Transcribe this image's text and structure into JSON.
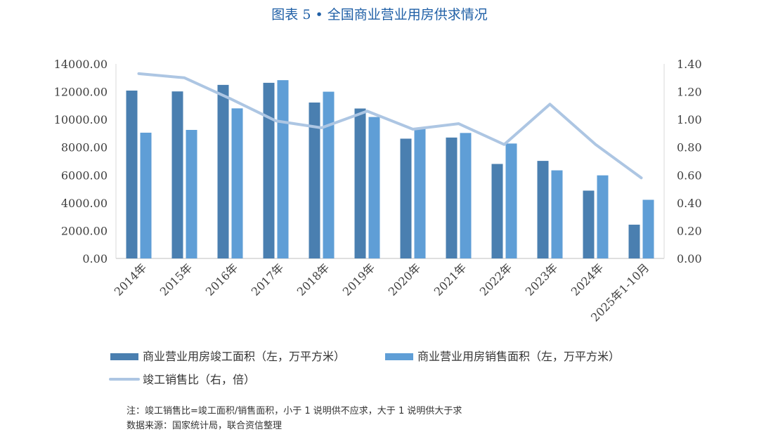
{
  "title": "图表 5 • 全国商业营业用房供求情况",
  "chart_data": {
    "type": "bar",
    "title": "图表 5 • 全国商业营业用房供求情况",
    "categories": [
      "2014年",
      "2015年",
      "2016年",
      "2017年",
      "2018年",
      "2019年",
      "2020年",
      "2021年",
      "2022年",
      "2023年",
      "2024年",
      "2025年1-10月"
    ],
    "series": [
      {
        "name": "商业营业用房竣工面积（左，万平方米）",
        "type": "bar",
        "axis": "left",
        "color": "#4a7fb0",
        "values": [
          12080,
          12020,
          12490,
          12640,
          11220,
          10790,
          8620,
          8700,
          6800,
          7020,
          4880,
          2430
        ]
      },
      {
        "name": "商业营业用房销售面积（左，万平方米）",
        "type": "bar",
        "axis": "left",
        "color": "#5f9ed6",
        "values": [
          9050,
          9250,
          10800,
          12830,
          12000,
          10180,
          9370,
          9030,
          8270,
          6340,
          5980,
          4220
        ]
      },
      {
        "name": "竣工销售比（右，倍）",
        "type": "line",
        "axis": "right",
        "color": "#adc6e3",
        "values": [
          1.33,
          1.3,
          1.15,
          0.99,
          0.94,
          1.06,
          0.93,
          0.97,
          0.82,
          1.11,
          0.82,
          0.58
        ]
      }
    ],
    "y_left": {
      "min": 0,
      "max": 14000,
      "ticks": [
        "0.00",
        "2000.00",
        "4000.00",
        "6000.00",
        "8000.00",
        "10000.00",
        "12000.00",
        "14000.00"
      ]
    },
    "y_right": {
      "min": 0,
      "max": 1.4,
      "ticks": [
        "0.00",
        "0.20",
        "0.40",
        "0.60",
        "0.80",
        "1.00",
        "1.20",
        "1.40"
      ]
    },
    "grid": false,
    "legend_position": "bottom"
  },
  "notes": {
    "note1": "注：竣工销售比=竣工面积/销售面积，小于 1 说明供不应求，大于 1 说明供大于求",
    "note2": "数据来源：国家统计局，联合资信整理"
  }
}
